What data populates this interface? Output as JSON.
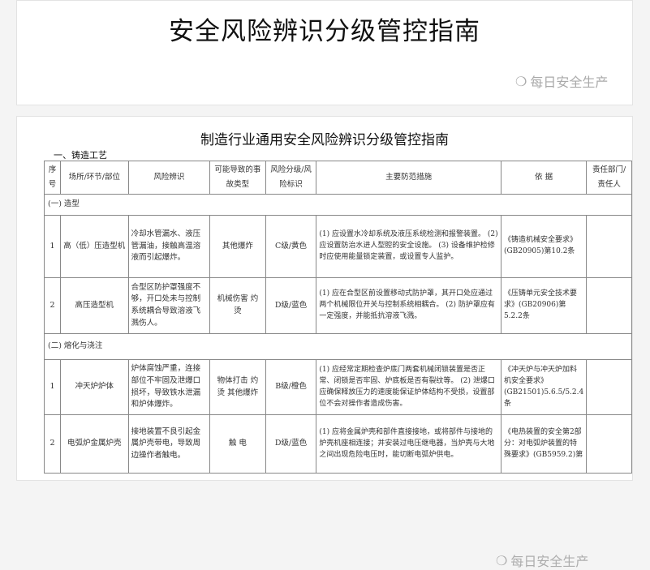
{
  "header": {
    "title": "安全风险辨识分级管控指南",
    "watermark": "每日安全生产"
  },
  "doc": {
    "title": "制造行业通用安全风险辨识分级管控指南",
    "section": "一、铸造工艺",
    "columns": [
      "序号",
      "场所/环节/部位",
      "风险辨识",
      "可能导致的事故类型",
      "风险分级/风险标识",
      "主要防范措施",
      "依 据",
      "责任部门/责任人"
    ],
    "groups": [
      {
        "label": "(一) 造型",
        "rows": [
          {
            "no": "1",
            "place": "高（低）压造型机",
            "risk": "冷却水管漏水、液压管漏油，接触高温溶液而引起爆炸。",
            "accident": "其他爆炸",
            "level": "C级/黄色",
            "measures": "(1) 应设置水冷却系统及液压系统检测和报警装置。 (2) 应设置防治水进人型腔的安全设施。 (3) 设备维护检修时应使用能量锁定装置，或设置专人监护。",
            "basis": "《铸造机械安全要求》(GB20905)第10.2条",
            "owner": ""
          },
          {
            "no": "2",
            "place": "高压造型机",
            "risk": "合型区防护罩强度不够，开口处未与控制系统耦合导致溶液飞溅伤人。",
            "accident": "机械伤害 灼 烫",
            "level": "D级/蓝色",
            "measures": "(1) 应在合型区前设置移动式防护罩，其开口处应通过两个机械限位开关与控制系统相耦合。 (2) 防护罩应有一定强度，并能抵抗溶液飞溅。",
            "basis": "《压铸单元安全技术要求》(GB20906)第5.2.2条",
            "owner": ""
          }
        ]
      },
      {
        "label": "(二) 熔化与浇注",
        "rows": [
          {
            "no": "1",
            "place": "冲天炉炉体",
            "risk": "炉体腐蚀严重，连接部位不牢固及泄爆口损坏，导致铁水泄漏和炉体爆炸。",
            "accident": "物体打击 灼 烫 其他爆炸",
            "level": "B级/橙色",
            "measures": "(1) 应经常定期检查炉底门两套机械闭锁装置是否正常、闭锁是否牢固、炉底板是否有裂纹等。 (2) 泄爆口应确保释放压力的速度能保证炉体结构不受损，设置部位不会对操作者造成伤害。",
            "basis": "《冲天炉与冲天炉加料机安全要求》(GB21501)5.6.5/5.2.4条",
            "owner": ""
          },
          {
            "no": "2",
            "place": "电弧炉金属炉壳",
            "risk": "接地装置不良引起金属炉壳带电，导致周边操作者触电。",
            "accident": "触 电",
            "level": "D级/蓝色",
            "measures": "(1) 应将金属炉壳和部件直接接地，或将部件与接地的炉壳机座相连接；并安装过电压继电器，当炉壳与大地之间出现危险电压时，能切断电弧炉供电。",
            "basis": "《电热装置的安全第2部分：对电弧炉装置的特殊要求》(GB5959.2)第",
            "owner": ""
          }
        ]
      }
    ]
  }
}
